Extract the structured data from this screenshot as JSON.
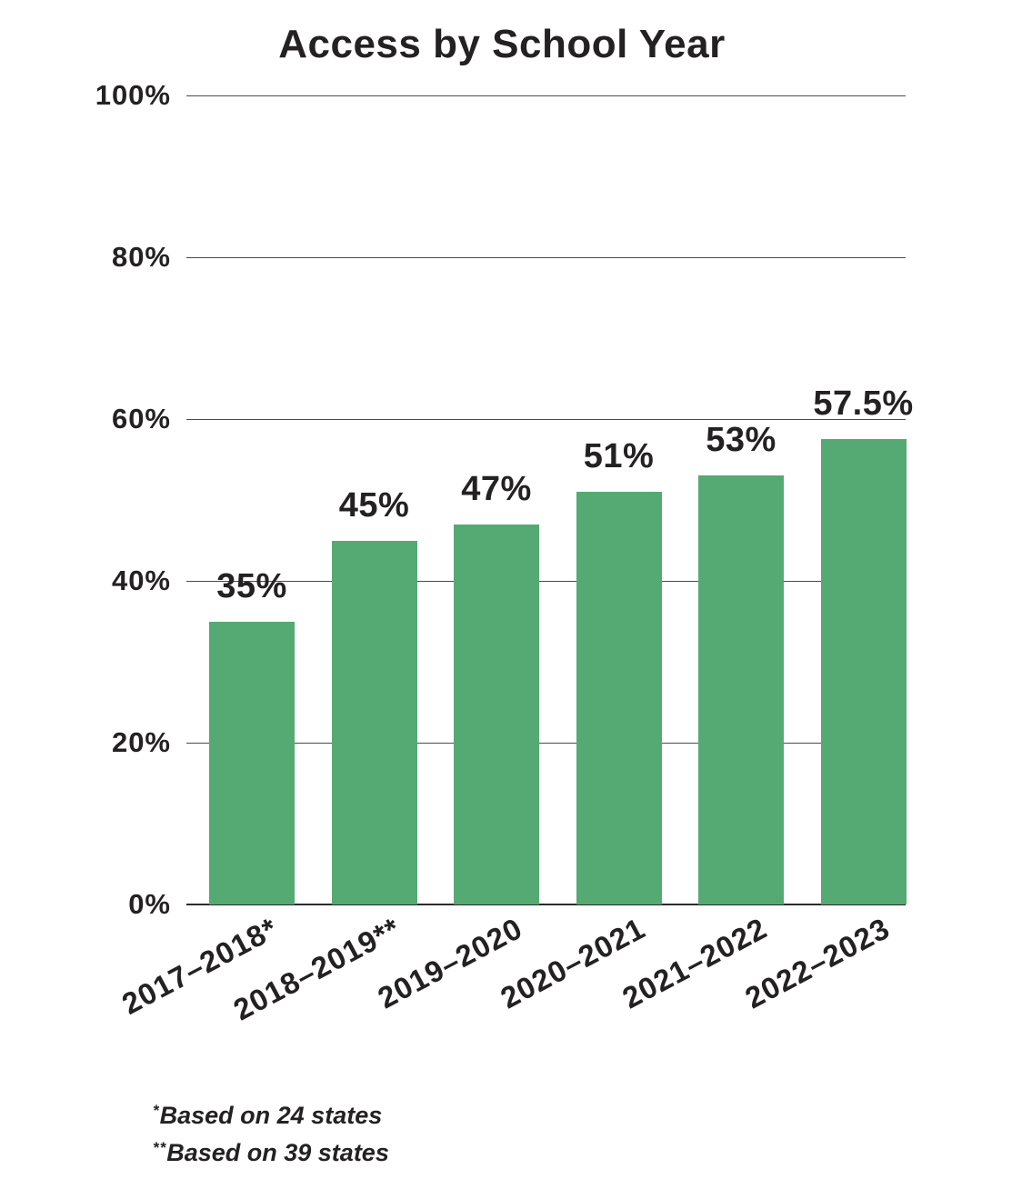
{
  "colors": {
    "bar": "#55aa73",
    "text": "#242122",
    "gridline": "#4a4a4a",
    "baseline": "#2b2b2b",
    "bg": "#ffffff"
  },
  "chart_data": {
    "type": "bar",
    "title": "Access by School Year",
    "categories": [
      "2017–2018*",
      "2018–2019**",
      "2019–2020",
      "2020–2021",
      "2021–2022",
      "2022–2023"
    ],
    "values": [
      35,
      45,
      47,
      51,
      53,
      57.5
    ],
    "value_labels": [
      "35%",
      "45%",
      "47%",
      "51%",
      "53%",
      "57.5%"
    ],
    "xlabel": "",
    "ylabel": "",
    "ylim": [
      0,
      100
    ],
    "ytick_labels": [
      "0%",
      "20%",
      "40%",
      "60%",
      "80%",
      "100%"
    ],
    "grid": true,
    "legend": false,
    "bar_color": "#55aa73"
  },
  "footnotes": [
    {
      "marker": "*",
      "text": "Based on 24 states"
    },
    {
      "marker": "**",
      "text": "Based on 39 states"
    }
  ]
}
